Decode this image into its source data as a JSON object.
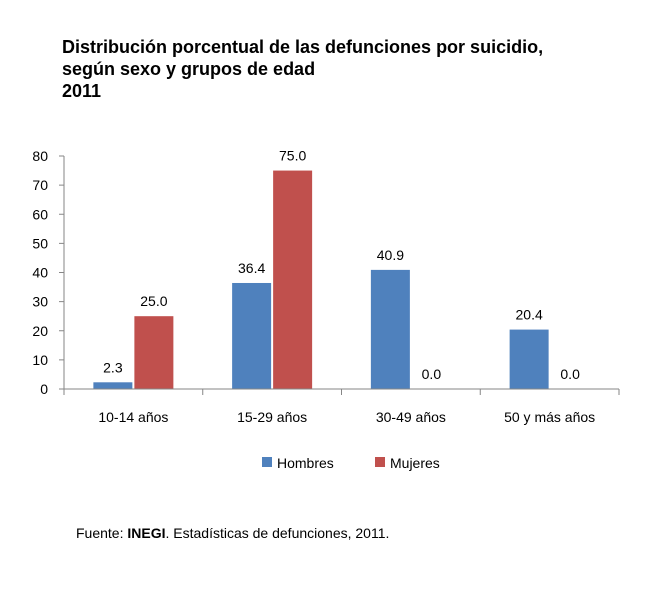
{
  "title": {
    "line1": "Distribución porcentual de las defunciones por suicidio,",
    "line2": "según sexo y grupos de edad",
    "line3": "2011"
  },
  "source": {
    "prefix": "Fuente: ",
    "org": "INEGI",
    "rest": ". Estadísticas de defunciones, 2011."
  },
  "colors": {
    "Hombres": "#4f81bd",
    "Mujeres": "#c0504d",
    "axis": "#868686"
  },
  "chart_data": {
    "type": "bar",
    "categories": [
      "10-14 años",
      "15-29 años",
      "30-49 años",
      "50 y más años"
    ],
    "series": [
      {
        "name": "Hombres",
        "values": [
          2.3,
          36.4,
          40.9,
          20.4
        ],
        "labels": [
          "2.3",
          "36.4",
          "40.9",
          "20.4"
        ]
      },
      {
        "name": "Mujeres",
        "values": [
          25.0,
          75.0,
          0.0,
          0.0
        ],
        "labels": [
          "25.0",
          "75.0",
          "0.0",
          "0.0"
        ]
      }
    ],
    "ylim": [
      0,
      80
    ],
    "yticks": [
      0,
      10,
      20,
      30,
      40,
      50,
      60,
      70,
      80
    ],
    "grid": false,
    "legend": "bottom"
  }
}
